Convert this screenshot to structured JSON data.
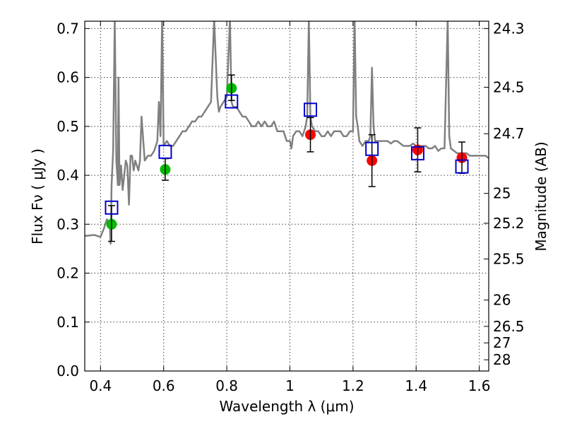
{
  "chart_data": {
    "type": "scatter",
    "xlabel": "Wavelength  λ (μm)",
    "ylabel": "Flux  Fν  ( μJy )",
    "ylabel_right": "Magnitude (AB)",
    "xlim": [
      0.35,
      1.63
    ],
    "ylim": [
      0.0,
      0.715
    ],
    "grid": true,
    "x_ticks": [
      0.4,
      0.6,
      0.8,
      1.0,
      1.2,
      1.4,
      1.6
    ],
    "x_tick_labels": [
      "0.4",
      "0.6",
      "0.8",
      "1",
      "1.2",
      "1.4",
      "1.6"
    ],
    "y_ticks": [
      0.0,
      0.1,
      0.2,
      0.3,
      0.4,
      0.5,
      0.6,
      0.7
    ],
    "y_tick_labels": [
      "0.0",
      "0.1",
      "0.2",
      "0.3",
      "0.4",
      "0.5",
      "0.6",
      "0.7"
    ],
    "right_ticks": [
      {
        "mag": "24.3",
        "flux": 0.7
      },
      {
        "mag": "24.5",
        "flux": 0.58
      },
      {
        "mag": "24.7",
        "flux": 0.485
      },
      {
        "mag": "25",
        "flux": 0.363
      },
      {
        "mag": "25.2",
        "flux": 0.302
      },
      {
        "mag": "25.5",
        "flux": 0.229
      },
      {
        "mag": "26",
        "flux": 0.145
      },
      {
        "mag": "26.5",
        "flux": 0.0912
      },
      {
        "mag": "27",
        "flux": 0.0575
      },
      {
        "mag": "28",
        "flux": 0.0229
      }
    ],
    "series": [
      {
        "kind": "spectrum",
        "color": "#808080",
        "x": [
          0.35,
          0.38,
          0.4,
          0.41,
          0.42,
          0.425,
          0.43,
          0.432,
          0.435,
          0.44,
          0.445,
          0.45,
          0.455,
          0.457,
          0.46,
          0.465,
          0.47,
          0.475,
          0.48,
          0.485,
          0.49,
          0.495,
          0.5,
          0.505,
          0.51,
          0.52,
          0.525,
          0.53,
          0.54,
          0.55,
          0.56,
          0.57,
          0.58,
          0.585,
          0.59,
          0.595,
          0.6,
          0.61,
          0.62,
          0.63,
          0.64,
          0.65,
          0.66,
          0.67,
          0.68,
          0.69,
          0.7,
          0.71,
          0.72,
          0.73,
          0.74,
          0.75,
          0.76,
          0.77,
          0.775,
          0.78,
          0.79,
          0.8,
          0.81,
          0.815,
          0.82,
          0.83,
          0.84,
          0.85,
          0.86,
          0.87,
          0.88,
          0.89,
          0.9,
          0.91,
          0.92,
          0.93,
          0.94,
          0.95,
          0.96,
          0.97,
          0.98,
          0.99,
          1.0,
          1.005,
          1.01,
          1.02,
          1.03,
          1.04,
          1.05,
          1.055,
          1.06,
          1.065,
          1.07,
          1.08,
          1.09,
          1.1,
          1.11,
          1.12,
          1.13,
          1.14,
          1.15,
          1.16,
          1.17,
          1.18,
          1.19,
          1.2,
          1.205,
          1.21,
          1.215,
          1.22,
          1.23,
          1.24,
          1.25,
          1.255,
          1.26,
          1.265,
          1.27,
          1.28,
          1.29,
          1.3,
          1.31,
          1.32,
          1.33,
          1.34,
          1.35,
          1.36,
          1.37,
          1.38,
          1.39,
          1.4,
          1.41,
          1.42,
          1.43,
          1.44,
          1.45,
          1.46,
          1.47,
          1.48,
          1.49,
          1.5,
          1.505,
          1.51,
          1.52,
          1.53,
          1.54,
          1.55,
          1.56,
          1.57,
          1.58,
          1.59,
          1.6,
          1.61,
          1.62,
          1.63
        ],
        "y": [
          0.276,
          0.278,
          0.274,
          0.29,
          0.31,
          0.305,
          0.29,
          0.26,
          0.38,
          0.45,
          0.72,
          0.43,
          0.38,
          0.6,
          0.38,
          0.42,
          0.37,
          0.4,
          0.43,
          0.42,
          0.34,
          0.44,
          0.44,
          0.41,
          0.43,
          0.41,
          0.43,
          0.52,
          0.43,
          0.44,
          0.44,
          0.45,
          0.47,
          0.55,
          0.48,
          0.72,
          0.46,
          0.47,
          0.46,
          0.46,
          0.47,
          0.48,
          0.49,
          0.49,
          0.5,
          0.51,
          0.51,
          0.52,
          0.52,
          0.53,
          0.54,
          0.55,
          0.72,
          0.56,
          0.53,
          0.54,
          0.55,
          0.56,
          0.72,
          0.55,
          0.54,
          0.54,
          0.53,
          0.52,
          0.52,
          0.51,
          0.5,
          0.5,
          0.51,
          0.5,
          0.51,
          0.5,
          0.5,
          0.51,
          0.49,
          0.49,
          0.49,
          0.47,
          0.47,
          0.455,
          0.48,
          0.49,
          0.49,
          0.48,
          0.5,
          0.52,
          0.72,
          0.52,
          0.5,
          0.49,
          0.49,
          0.48,
          0.48,
          0.49,
          0.48,
          0.49,
          0.49,
          0.49,
          0.48,
          0.48,
          0.49,
          0.49,
          0.72,
          0.52,
          0.5,
          0.47,
          0.46,
          0.47,
          0.47,
          0.48,
          0.62,
          0.5,
          0.47,
          0.47,
          0.47,
          0.47,
          0.47,
          0.465,
          0.47,
          0.47,
          0.465,
          0.46,
          0.46,
          0.46,
          0.465,
          0.46,
          0.46,
          0.46,
          0.46,
          0.455,
          0.455,
          0.46,
          0.45,
          0.455,
          0.455,
          0.72,
          0.48,
          0.455,
          0.45,
          0.445,
          0.445,
          0.445,
          0.445,
          0.44,
          0.44,
          0.44,
          0.44,
          0.44,
          0.44,
          0.435
        ]
      },
      {
        "kind": "points",
        "marker": "circle",
        "color": "#00bb00",
        "x": [
          0.435,
          0.605,
          0.815
        ],
        "y": [
          0.3,
          0.412,
          0.578
        ]
      },
      {
        "kind": "points",
        "marker": "circle",
        "color": "#ff0000",
        "x": [
          1.065,
          1.26,
          1.405,
          1.545
        ],
        "y": [
          0.483,
          0.43,
          0.452,
          0.436
        ]
      },
      {
        "kind": "errorbars",
        "color": "#000000",
        "x": [
          0.435,
          0.605,
          0.815,
          1.065,
          1.26,
          1.405,
          1.545
        ],
        "y": [
          0.3,
          0.412,
          0.578,
          0.483,
          0.43,
          0.452,
          0.436
        ],
        "err_low": [
          0.035,
          0.022,
          0.025,
          0.035,
          0.053,
          0.045,
          0.032
        ],
        "err_high": [
          0.038,
          0.022,
          0.027,
          0.035,
          0.053,
          0.045,
          0.032
        ]
      },
      {
        "kind": "points",
        "marker": "square-open",
        "color": "#0000cc",
        "x": [
          0.435,
          0.605,
          0.815,
          1.065,
          1.26,
          1.405,
          1.545
        ],
        "y": [
          0.334,
          0.448,
          0.551,
          0.534,
          0.454,
          0.445,
          0.418
        ]
      }
    ]
  }
}
